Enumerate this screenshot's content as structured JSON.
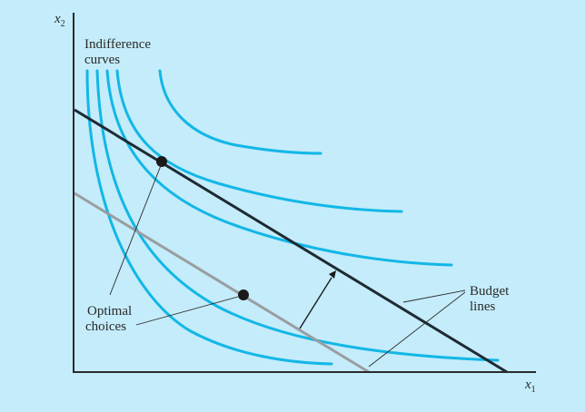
{
  "axes": {
    "y_label": "x",
    "y_sub": "2",
    "x_label": "x",
    "x_sub": "1"
  },
  "labels": {
    "indifference_line1": "Indifference",
    "indifference_line2": "curves",
    "optimal_line1": "Optimal",
    "optimal_line2": "choices",
    "budget_line1": "Budget",
    "budget_line2": "lines"
  },
  "colors": {
    "background": "#c4ecfa",
    "indifference_curve": "#12b7e6",
    "budget_high": "#1e2a33",
    "budget_low": "#9a9ea1",
    "axis": "#2a2a2a",
    "point": "#1a1a1a"
  }
}
